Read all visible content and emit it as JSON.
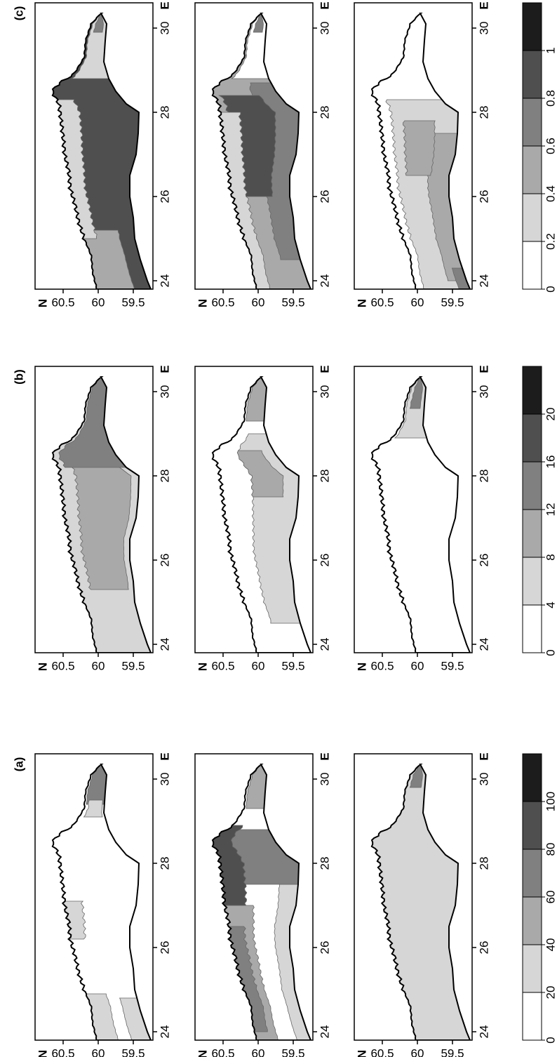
{
  "map": {
    "lat_axis_label": "N",
    "lon_axis_label": "E",
    "lat_ticks": [
      60.5,
      60,
      59.5
    ],
    "lon_ticks": [
      24,
      26,
      28,
      30
    ],
    "colors": [
      "#ffffff",
      "#d6d6d6",
      "#a9a9a9",
      "#808080",
      "#4f4f4f",
      "#1c1c1c"
    ],
    "panels": [
      {
        "label": "(a)",
        "colorbar": {
          "ticks": [
            0,
            20,
            40,
            60,
            80,
            100
          ],
          "lim": [
            0,
            120
          ]
        }
      },
      {
        "label": "(b)",
        "colorbar": {
          "ticks": [
            0,
            4,
            8,
            12,
            16,
            20
          ],
          "lim": [
            0,
            24
          ]
        }
      },
      {
        "label": "(c)",
        "colorbar": {
          "ticks": [
            0,
            0.2,
            0.4,
            0.6,
            0.8,
            1
          ],
          "lim": [
            0,
            1.2
          ]
        }
      }
    ]
  }
}
